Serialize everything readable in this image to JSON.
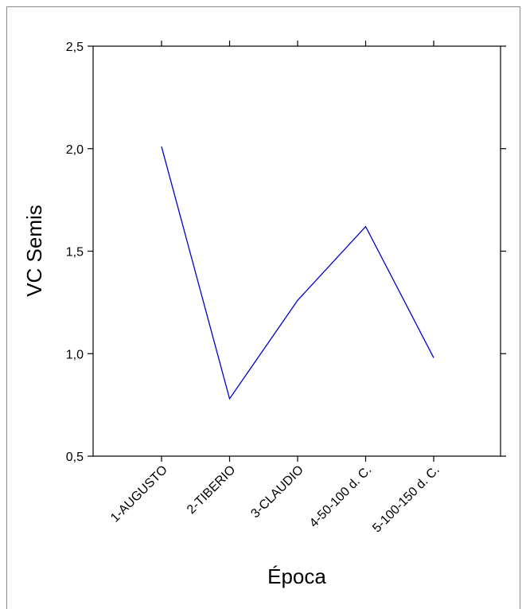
{
  "chart_data": {
    "type": "line",
    "title": "",
    "xlabel": "Época",
    "ylabel": "VC Semis",
    "categories": [
      "1-AUGUSTO",
      "2-TIBERIO",
      "3-CLAUDIO",
      "4-50-100 d. C.",
      "5-100-150 d. C."
    ],
    "series": [
      {
        "values": [
          2.01,
          0.78,
          1.26,
          1.62,
          0.98
        ],
        "color": "#0000cc"
      }
    ],
    "ylim": [
      0.5,
      2.5
    ],
    "yticks": [
      "0,5",
      "1,0",
      "1,5",
      "2,0",
      "2,5"
    ],
    "ytick_values": [
      0.5,
      1.0,
      1.5,
      2.0,
      2.5
    ],
    "grid": false,
    "legend": "none"
  }
}
